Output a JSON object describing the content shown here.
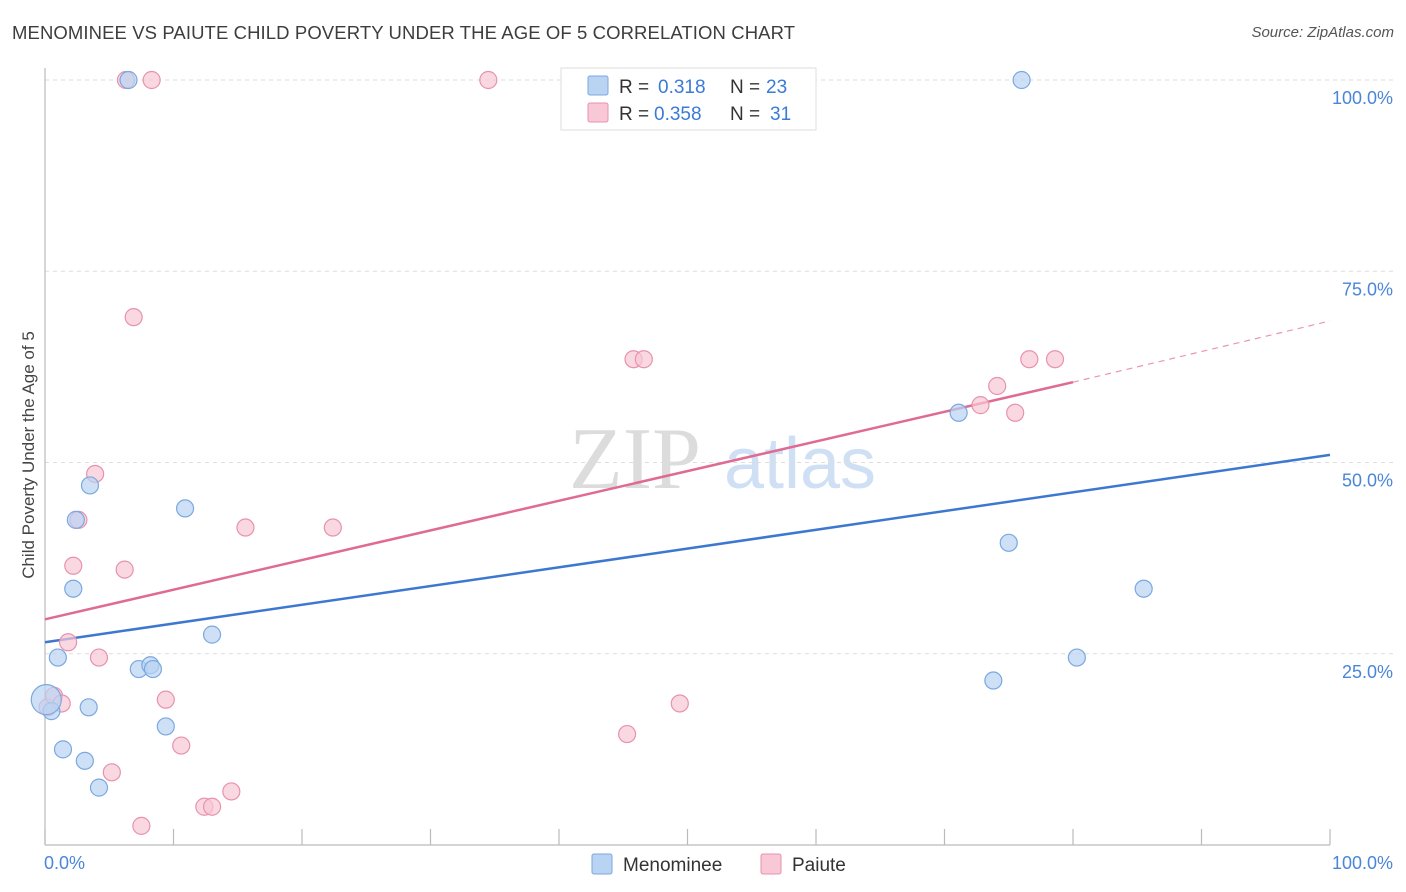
{
  "title": "MENOMINEE VS PAIUTE CHILD POVERTY UNDER THE AGE OF 5 CORRELATION CHART",
  "source": "Source: ZipAtlas.com",
  "watermark": {
    "zip": "ZIP",
    "atlas": "atlas"
  },
  "colors": {
    "menominee_fill": "#b9d3f2",
    "menominee_stroke": "#7aa8e0",
    "menominee_line": "#3c78d0",
    "paiute_fill": "#f8c8d6",
    "paiute_stroke": "#e892ad",
    "paiute_line": "#e06b92",
    "tick_label": "#4a86d8",
    "grid": "#dddddd"
  },
  "legend": {
    "r_label": "R =",
    "n_label": "N =",
    "rows": [
      {
        "series": "Menominee",
        "r": "0.318",
        "n": "23"
      },
      {
        "series": "Paiute",
        "r": "0.358",
        "n": "31"
      }
    ]
  },
  "chart_data": {
    "type": "scatter",
    "title": "MENOMINEE VS PAIUTE CHILD POVERTY UNDER THE AGE OF 5 CORRELATION CHART",
    "xlabel": "",
    "ylabel": "Child Poverty Under the Age of 5",
    "xlim": [
      0,
      100
    ],
    "ylim": [
      0,
      100
    ],
    "x_tick_labels": [
      "0.0%",
      "100.0%"
    ],
    "y_tick_labels": [
      "25.0%",
      "50.0%",
      "75.0%",
      "100.0%"
    ],
    "y_ticks": [
      25,
      50,
      75,
      100
    ],
    "grid": true,
    "legend_position": "bottom",
    "series": [
      {
        "name": "Menominee",
        "points": [
          [
            0.5,
            17.5
          ],
          [
            1.0,
            24.5
          ],
          [
            1.4,
            12.5
          ],
          [
            2.2,
            33.5
          ],
          [
            2.4,
            42.5
          ],
          [
            3.1,
            11.0
          ],
          [
            3.4,
            18.0
          ],
          [
            3.5,
            47.0
          ],
          [
            4.2,
            7.5
          ],
          [
            6.5,
            100.0
          ],
          [
            7.3,
            23.0
          ],
          [
            8.2,
            23.5
          ],
          [
            8.4,
            23.0
          ],
          [
            9.4,
            15.5
          ],
          [
            10.9,
            44.0
          ],
          [
            13.0,
            27.5
          ],
          [
            71.1,
            56.5
          ],
          [
            73.8,
            21.5
          ],
          [
            75.0,
            39.5
          ],
          [
            76.0,
            100.0
          ],
          [
            80.3,
            24.5
          ],
          [
            85.5,
            33.5
          ],
          [
            0.1,
            19.0
          ]
        ],
        "trend": {
          "x": [
            0,
            100
          ],
          "y": [
            26.5,
            51.0
          ]
        }
      },
      {
        "name": "Paiute",
        "points": [
          [
            0.2,
            18.0
          ],
          [
            0.7,
            19.5
          ],
          [
            1.3,
            18.5
          ],
          [
            1.8,
            26.5
          ],
          [
            2.2,
            36.5
          ],
          [
            2.6,
            42.5
          ],
          [
            3.9,
            48.5
          ],
          [
            4.2,
            24.5
          ],
          [
            5.2,
            9.5
          ],
          [
            6.3,
            100.0
          ],
          [
            6.2,
            36.0
          ],
          [
            6.9,
            69.0
          ],
          [
            7.5,
            2.5
          ],
          [
            8.3,
            100.0
          ],
          [
            9.4,
            19.0
          ],
          [
            10.6,
            13.0
          ],
          [
            12.4,
            5.0
          ],
          [
            13.0,
            5.0
          ],
          [
            14.5,
            7.0
          ],
          [
            15.6,
            41.5
          ],
          [
            22.4,
            41.5
          ],
          [
            34.5,
            100.0
          ],
          [
            45.3,
            14.5
          ],
          [
            45.8,
            63.5
          ],
          [
            46.6,
            63.5
          ],
          [
            49.4,
            18.5
          ],
          [
            72.8,
            57.5
          ],
          [
            74.1,
            60.0
          ],
          [
            75.5,
            56.5
          ],
          [
            76.6,
            63.5
          ],
          [
            78.6,
            63.5
          ]
        ],
        "trend": {
          "x": [
            0,
            80
          ],
          "y": [
            29.5,
            60.5
          ]
        },
        "trend_dashed": {
          "x": [
            80,
            100
          ],
          "y": [
            60.5,
            68.5
          ]
        }
      }
    ]
  },
  "bottom_legend": [
    "Menominee",
    "Paiute"
  ]
}
